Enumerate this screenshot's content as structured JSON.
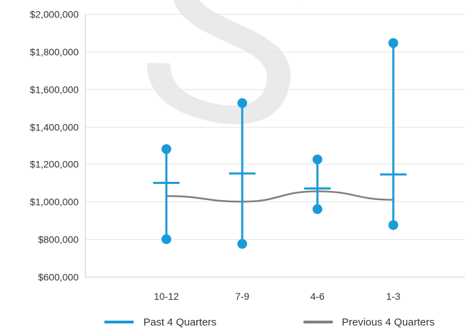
{
  "chart_data": {
    "type": "line",
    "categories": [
      "10-12",
      "7-9",
      "4-6",
      "1-3"
    ],
    "ylim": [
      600000,
      2000000
    ],
    "yticks": [
      600000,
      800000,
      1000000,
      1200000,
      1400000,
      1600000,
      1800000,
      2000000
    ],
    "ytick_labels": [
      "$600,000",
      "$800,000",
      "$1,000,000",
      "$1,200,000",
      "$1,400,000",
      "$1,600,000",
      "$1,800,000",
      "$2,000,000"
    ],
    "grid": true,
    "legend_position": "bottom",
    "series": [
      {
        "name": "Past 4 Quarters",
        "style": "range-with-average",
        "color": "#1a9ad8",
        "high": [
          1280000,
          1525000,
          1225000,
          1845000
        ],
        "avg": [
          1100000,
          1150000,
          1070000,
          1145000
        ],
        "low": [
          800000,
          775000,
          960000,
          875000
        ]
      },
      {
        "name": "Previous 4 Quarters",
        "style": "line",
        "color": "#808080",
        "values": [
          1030000,
          1000000,
          1055000,
          1010000
        ]
      }
    ]
  },
  "watermark": {
    "text": "S"
  }
}
